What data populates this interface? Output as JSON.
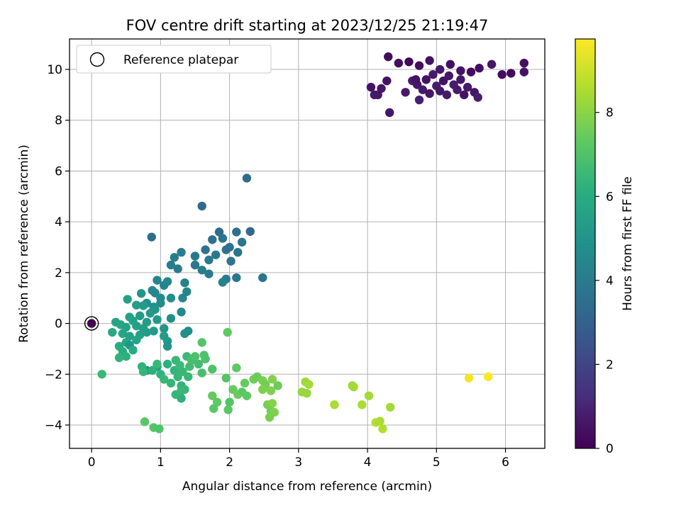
{
  "chart_data": {
    "type": "scatter",
    "title": "FOV centre drift starting at 2023/12/25 21:19:47",
    "xlabel": "Angular distance from reference (arcmin)",
    "ylabel": "Rotation from reference (arcmin)",
    "xlim": [
      -0.32,
      6.57
    ],
    "ylim": [
      -4.92,
      11.2
    ],
    "xticks": [
      0,
      1,
      2,
      3,
      4,
      5,
      6
    ],
    "yticks": [
      -4,
      -2,
      0,
      2,
      4,
      6,
      8,
      10
    ],
    "grid": true,
    "legend": {
      "position": "top-left",
      "entries": [
        "Reference platepar"
      ]
    },
    "reference_point": {
      "x": 0,
      "y": 0
    },
    "colorbar": {
      "label": "Hours from first FF file",
      "colormap": "viridis",
      "range": [
        0,
        9.75
      ],
      "ticks": [
        0,
        2,
        4,
        6,
        8
      ]
    },
    "points": [
      {
        "x": 4.3,
        "y": 10.5,
        "h": 0.3
      },
      {
        "x": 4.45,
        "y": 10.25,
        "h": 0.4
      },
      {
        "x": 4.6,
        "y": 10.3,
        "h": 0.2
      },
      {
        "x": 4.75,
        "y": 10.15,
        "h": 0.3
      },
      {
        "x": 4.9,
        "y": 10.35,
        "h": 0.5
      },
      {
        "x": 5.05,
        "y": 10.0,
        "h": 0.6
      },
      {
        "x": 5.2,
        "y": 10.2,
        "h": 0.4
      },
      {
        "x": 5.35,
        "y": 9.95,
        "h": 0.5
      },
      {
        "x": 5.5,
        "y": 9.9,
        "h": 0.3
      },
      {
        "x": 5.62,
        "y": 10.05,
        "h": 0.4
      },
      {
        "x": 5.8,
        "y": 10.2,
        "h": 0.6
      },
      {
        "x": 5.95,
        "y": 9.8,
        "h": 0.3
      },
      {
        "x": 6.08,
        "y": 9.85,
        "h": 0.2
      },
      {
        "x": 6.27,
        "y": 10.25,
        "h": 0.4
      },
      {
        "x": 6.27,
        "y": 9.9,
        "h": 0.5
      },
      {
        "x": 4.05,
        "y": 9.3,
        "h": 0.5
      },
      {
        "x": 4.1,
        "y": 9.0,
        "h": 0.7
      },
      {
        "x": 4.2,
        "y": 9.25,
        "h": 0.6
      },
      {
        "x": 4.28,
        "y": 9.55,
        "h": 0.5
      },
      {
        "x": 4.32,
        "y": 8.3,
        "h": 0.6
      },
      {
        "x": 4.55,
        "y": 9.1,
        "h": 0.7
      },
      {
        "x": 4.65,
        "y": 9.55,
        "h": 0.8
      },
      {
        "x": 4.72,
        "y": 9.4,
        "h": 0.6
      },
      {
        "x": 4.8,
        "y": 9.2,
        "h": 0.7
      },
      {
        "x": 4.85,
        "y": 9.6,
        "h": 0.5
      },
      {
        "x": 4.9,
        "y": 9.05,
        "h": 0.6
      },
      {
        "x": 4.95,
        "y": 9.8,
        "h": 0.7
      },
      {
        "x": 5.0,
        "y": 9.35,
        "h": 0.8
      },
      {
        "x": 5.05,
        "y": 9.15,
        "h": 0.6
      },
      {
        "x": 5.1,
        "y": 9.55,
        "h": 0.5
      },
      {
        "x": 5.15,
        "y": 9.0,
        "h": 0.7
      },
      {
        "x": 5.18,
        "y": 9.75,
        "h": 0.6
      },
      {
        "x": 5.25,
        "y": 9.4,
        "h": 0.8
      },
      {
        "x": 5.3,
        "y": 9.2,
        "h": 0.7
      },
      {
        "x": 5.35,
        "y": 9.6,
        "h": 0.6
      },
      {
        "x": 5.4,
        "y": 9.0,
        "h": 0.5
      },
      {
        "x": 5.45,
        "y": 9.3,
        "h": 0.7
      },
      {
        "x": 5.55,
        "y": 9.1,
        "h": 0.6
      },
      {
        "x": 5.6,
        "y": 8.9,
        "h": 0.8
      },
      {
        "x": 4.75,
        "y": 8.8,
        "h": 0.9
      },
      {
        "x": 4.15,
        "y": 9.0,
        "h": 0.6
      },
      {
        "x": 4.7,
        "y": 9.6,
        "h": 0.5
      },
      {
        "x": 2.25,
        "y": 5.72,
        "h": 3.4
      },
      {
        "x": 1.6,
        "y": 4.62,
        "h": 3.3
      },
      {
        "x": 0.87,
        "y": 3.4,
        "h": 3.5
      },
      {
        "x": 1.75,
        "y": 3.3,
        "h": 3.6
      },
      {
        "x": 1.85,
        "y": 3.6,
        "h": 3.4
      },
      {
        "x": 2.1,
        "y": 3.6,
        "h": 3.5
      },
      {
        "x": 2.3,
        "y": 3.62,
        "h": 3.3
      },
      {
        "x": 1.9,
        "y": 3.35,
        "h": 3.7
      },
      {
        "x": 2.0,
        "y": 3.0,
        "h": 3.6
      },
      {
        "x": 2.18,
        "y": 3.2,
        "h": 3.8
      },
      {
        "x": 1.65,
        "y": 2.9,
        "h": 3.7
      },
      {
        "x": 1.8,
        "y": 2.7,
        "h": 3.9
      },
      {
        "x": 1.7,
        "y": 2.5,
        "h": 4.0
      },
      {
        "x": 1.95,
        "y": 2.9,
        "h": 3.6
      },
      {
        "x": 2.12,
        "y": 2.8,
        "h": 3.8
      },
      {
        "x": 1.5,
        "y": 2.65,
        "h": 3.9
      },
      {
        "x": 1.3,
        "y": 2.8,
        "h": 4.0
      },
      {
        "x": 1.2,
        "y": 2.6,
        "h": 4.1
      },
      {
        "x": 1.15,
        "y": 2.3,
        "h": 4.2
      },
      {
        "x": 1.25,
        "y": 2.15,
        "h": 4.0
      },
      {
        "x": 1.5,
        "y": 2.3,
        "h": 3.9
      },
      {
        "x": 1.6,
        "y": 2.1,
        "h": 4.1
      },
      {
        "x": 1.7,
        "y": 1.95,
        "h": 4.0
      },
      {
        "x": 2.02,
        "y": 2.45,
        "h": 3.8
      },
      {
        "x": 1.95,
        "y": 1.75,
        "h": 4.1
      },
      {
        "x": 2.1,
        "y": 1.8,
        "h": 3.9
      },
      {
        "x": 2.48,
        "y": 1.8,
        "h": 3.7
      },
      {
        "x": 1.9,
        "y": 1.62,
        "h": 4.2
      },
      {
        "x": 1.35,
        "y": 1.6,
        "h": 4.3
      },
      {
        "x": 1.38,
        "y": 1.25,
        "h": 4.4
      },
      {
        "x": 1.05,
        "y": 1.5,
        "h": 4.3
      },
      {
        "x": 1.1,
        "y": 1.65,
        "h": 4.5
      },
      {
        "x": 0.95,
        "y": 1.7,
        "h": 4.4
      },
      {
        "x": 0.88,
        "y": 1.3,
        "h": 4.6
      },
      {
        "x": 0.92,
        "y": 1.2,
        "h": 4.5
      },
      {
        "x": 1.0,
        "y": 1.0,
        "h": 4.6
      },
      {
        "x": 1.15,
        "y": 1.0,
        "h": 4.7
      },
      {
        "x": 1.32,
        "y": 1.0,
        "h": 4.5
      },
      {
        "x": 0.72,
        "y": 1.18,
        "h": 5.0
      },
      {
        "x": 0.8,
        "y": 0.8,
        "h": 4.8
      },
      {
        "x": 0.9,
        "y": 0.65,
        "h": 4.9
      },
      {
        "x": 1.0,
        "y": 0.8,
        "h": 4.7
      },
      {
        "x": 1.3,
        "y": 0.45,
        "h": 4.6
      },
      {
        "x": 1.15,
        "y": 0.2,
        "h": 4.8
      },
      {
        "x": 0.52,
        "y": 0.95,
        "h": 5.6
      },
      {
        "x": 0.65,
        "y": 0.72,
        "h": 5.4
      },
      {
        "x": 0.75,
        "y": 0.7,
        "h": 5.3
      },
      {
        "x": 0.85,
        "y": 0.4,
        "h": 5.2
      },
      {
        "x": 0.92,
        "y": 0.55,
        "h": 5.1
      },
      {
        "x": 0.55,
        "y": 0.25,
        "h": 5.5
      },
      {
        "x": 0.7,
        "y": 0.3,
        "h": 5.3
      },
      {
        "x": 0.6,
        "y": 0.1,
        "h": 5.6
      },
      {
        "x": 0.8,
        "y": 0.05,
        "h": 5.4
      },
      {
        "x": 0.95,
        "y": 0.15,
        "h": 5.2
      },
      {
        "x": 0.35,
        "y": 0.05,
        "h": 5.7
      },
      {
        "x": 0.42,
        "y": -0.05,
        "h": 5.8
      },
      {
        "x": 0.5,
        "y": -0.15,
        "h": 5.6
      },
      {
        "x": 0.65,
        "y": -0.1,
        "h": 5.5
      },
      {
        "x": 0.75,
        "y": -0.2,
        "h": 5.4
      },
      {
        "x": 0.9,
        "y": -0.3,
        "h": 5.3
      },
      {
        "x": 1.05,
        "y": -0.2,
        "h": 5.1
      },
      {
        "x": 0.3,
        "y": -0.35,
        "h": 5.9
      },
      {
        "x": 0.45,
        "y": -0.4,
        "h": 5.7
      },
      {
        "x": 0.55,
        "y": -0.5,
        "h": 5.6
      },
      {
        "x": 0.7,
        "y": -0.45,
        "h": 5.5
      },
      {
        "x": 0.8,
        "y": -0.35,
        "h": 5.4
      },
      {
        "x": 0.65,
        "y": -0.65,
        "h": 5.7
      },
      {
        "x": 0.5,
        "y": -0.75,
        "h": 5.8
      },
      {
        "x": 0.55,
        "y": -0.85,
        "h": 5.1
      },
      {
        "x": 0.4,
        "y": -0.9,
        "h": 6.0
      },
      {
        "x": 0.45,
        "y": -1.1,
        "h": 6.1
      },
      {
        "x": 0.6,
        "y": -1.05,
        "h": 6.0
      },
      {
        "x": 0.5,
        "y": -1.3,
        "h": 6.2
      },
      {
        "x": 0.4,
        "y": -1.35,
        "h": 6.3
      },
      {
        "x": 1.05,
        "y": -0.5,
        "h": 5.3
      },
      {
        "x": 1.1,
        "y": -0.7,
        "h": 5.2
      },
      {
        "x": 1.1,
        "y": -0.9,
        "h": 5.0
      },
      {
        "x": 1.35,
        "y": -0.4,
        "h": 4.8
      },
      {
        "x": 1.4,
        "y": -0.3,
        "h": 4.7
      },
      {
        "x": 0.8,
        "y": -1.85,
        "h": 4.9
      },
      {
        "x": 0.95,
        "y": -1.7,
        "h": 5.3
      },
      {
        "x": 0.73,
        "y": -1.7,
        "h": 6.3
      },
      {
        "x": 0.75,
        "y": -1.9,
        "h": 6.4
      },
      {
        "x": 0.88,
        "y": -1.85,
        "h": 6.2
      },
      {
        "x": 0.95,
        "y": -1.6,
        "h": 6.5
      },
      {
        "x": 1.0,
        "y": -2.0,
        "h": 6.3
      },
      {
        "x": 1.05,
        "y": -2.2,
        "h": 6.5
      },
      {
        "x": 1.1,
        "y": -1.6,
        "h": 6.2
      },
      {
        "x": 1.15,
        "y": -2.35,
        "h": 6.4
      },
      {
        "x": 1.2,
        "y": -1.85,
        "h": 6.3
      },
      {
        "x": 1.22,
        "y": -1.45,
        "h": 6.5
      },
      {
        "x": 1.25,
        "y": -2.1,
        "h": 6.4
      },
      {
        "x": 1.28,
        "y": -1.65,
        "h": 6.6
      },
      {
        "x": 1.3,
        "y": -2.45,
        "h": 6.3
      },
      {
        "x": 1.32,
        "y": -1.9,
        "h": 6.5
      },
      {
        "x": 1.35,
        "y": -2.6,
        "h": 6.4
      },
      {
        "x": 1.38,
        "y": -1.3,
        "h": 6.6
      },
      {
        "x": 1.4,
        "y": -2.1,
        "h": 6.5
      },
      {
        "x": 1.42,
        "y": -1.7,
        "h": 6.7
      },
      {
        "x": 1.45,
        "y": -1.45,
        "h": 6.8
      },
      {
        "x": 1.5,
        "y": -1.3,
        "h": 6.9
      },
      {
        "x": 1.55,
        "y": -1.6,
        "h": 6.7
      },
      {
        "x": 1.6,
        "y": -1.95,
        "h": 6.8
      },
      {
        "x": 1.3,
        "y": -2.95,
        "h": 6.2
      },
      {
        "x": 1.22,
        "y": -2.8,
        "h": 6.4
      },
      {
        "x": 1.3,
        "y": -2.65,
        "h": 6.5
      },
      {
        "x": 1.65,
        "y": -1.4,
        "h": 6.9
      },
      {
        "x": 1.63,
        "y": -1.25,
        "h": 7.0
      },
      {
        "x": 1.6,
        "y": -0.75,
        "h": 7.1
      },
      {
        "x": 1.75,
        "y": -1.8,
        "h": 7.0
      },
      {
        "x": 0.15,
        "y": -2.0,
        "h": 6.5
      },
      {
        "x": 0.77,
        "y": -3.87,
        "h": 7.2
      },
      {
        "x": 0.9,
        "y": -4.1,
        "h": 7.1
      },
      {
        "x": 0.98,
        "y": -4.15,
        "h": 7.0
      },
      {
        "x": 1.97,
        "y": -0.35,
        "h": 7.3
      },
      {
        "x": 1.75,
        "y": -2.85,
        "h": 7.4
      },
      {
        "x": 1.82,
        "y": -3.1,
        "h": 7.3
      },
      {
        "x": 1.77,
        "y": -3.35,
        "h": 7.2
      },
      {
        "x": 1.95,
        "y": -2.15,
        "h": 7.1
      },
      {
        "x": 2.05,
        "y": -2.6,
        "h": 7.4
      },
      {
        "x": 2.1,
        "y": -1.75,
        "h": 7.3
      },
      {
        "x": 2.12,
        "y": -2.8,
        "h": 7.5
      },
      {
        "x": 2.18,
        "y": -2.7,
        "h": 7.2
      },
      {
        "x": 2.22,
        "y": -2.35,
        "h": 7.4
      },
      {
        "x": 2.25,
        "y": -2.85,
        "h": 7.3
      },
      {
        "x": 1.98,
        "y": -3.4,
        "h": 7.2
      },
      {
        "x": 2.0,
        "y": -3.1,
        "h": 7.1
      },
      {
        "x": 2.35,
        "y": -2.2,
        "h": 7.6
      },
      {
        "x": 2.4,
        "y": -2.1,
        "h": 7.5
      },
      {
        "x": 2.48,
        "y": -2.25,
        "h": 7.7
      },
      {
        "x": 2.52,
        "y": -2.4,
        "h": 7.6
      },
      {
        "x": 2.48,
        "y": -2.6,
        "h": 7.8
      },
      {
        "x": 2.55,
        "y": -3.2,
        "h": 7.7
      },
      {
        "x": 2.6,
        "y": -3.45,
        "h": 7.6
      },
      {
        "x": 2.65,
        "y": -3.5,
        "h": 7.8
      },
      {
        "x": 2.58,
        "y": -3.7,
        "h": 7.7
      },
      {
        "x": 2.62,
        "y": -2.2,
        "h": 7.9
      },
      {
        "x": 2.6,
        "y": -2.65,
        "h": 7.8
      },
      {
        "x": 2.62,
        "y": -3.15,
        "h": 7.9
      },
      {
        "x": 2.7,
        "y": -2.45,
        "h": 7.5
      },
      {
        "x": 3.05,
        "y": -2.7,
        "h": 8.2
      },
      {
        "x": 3.1,
        "y": -2.3,
        "h": 8.3
      },
      {
        "x": 3.12,
        "y": -2.75,
        "h": 8.2
      },
      {
        "x": 3.15,
        "y": -2.4,
        "h": 8.4
      },
      {
        "x": 3.52,
        "y": -3.2,
        "h": 8.5
      },
      {
        "x": 3.78,
        "y": -2.45,
        "h": 8.3
      },
      {
        "x": 3.8,
        "y": -2.5,
        "h": 8.4
      },
      {
        "x": 3.92,
        "y": -3.2,
        "h": 8.5
      },
      {
        "x": 4.02,
        "y": -2.85,
        "h": 8.4
      },
      {
        "x": 4.12,
        "y": -3.9,
        "h": 8.6
      },
      {
        "x": 4.18,
        "y": -3.85,
        "h": 8.5
      },
      {
        "x": 4.22,
        "y": -4.15,
        "h": 8.6
      },
      {
        "x": 4.33,
        "y": -3.3,
        "h": 8.4
      },
      {
        "x": 5.47,
        "y": -2.15,
        "h": 9.6
      },
      {
        "x": 5.75,
        "y": -2.1,
        "h": 9.7
      }
    ]
  }
}
